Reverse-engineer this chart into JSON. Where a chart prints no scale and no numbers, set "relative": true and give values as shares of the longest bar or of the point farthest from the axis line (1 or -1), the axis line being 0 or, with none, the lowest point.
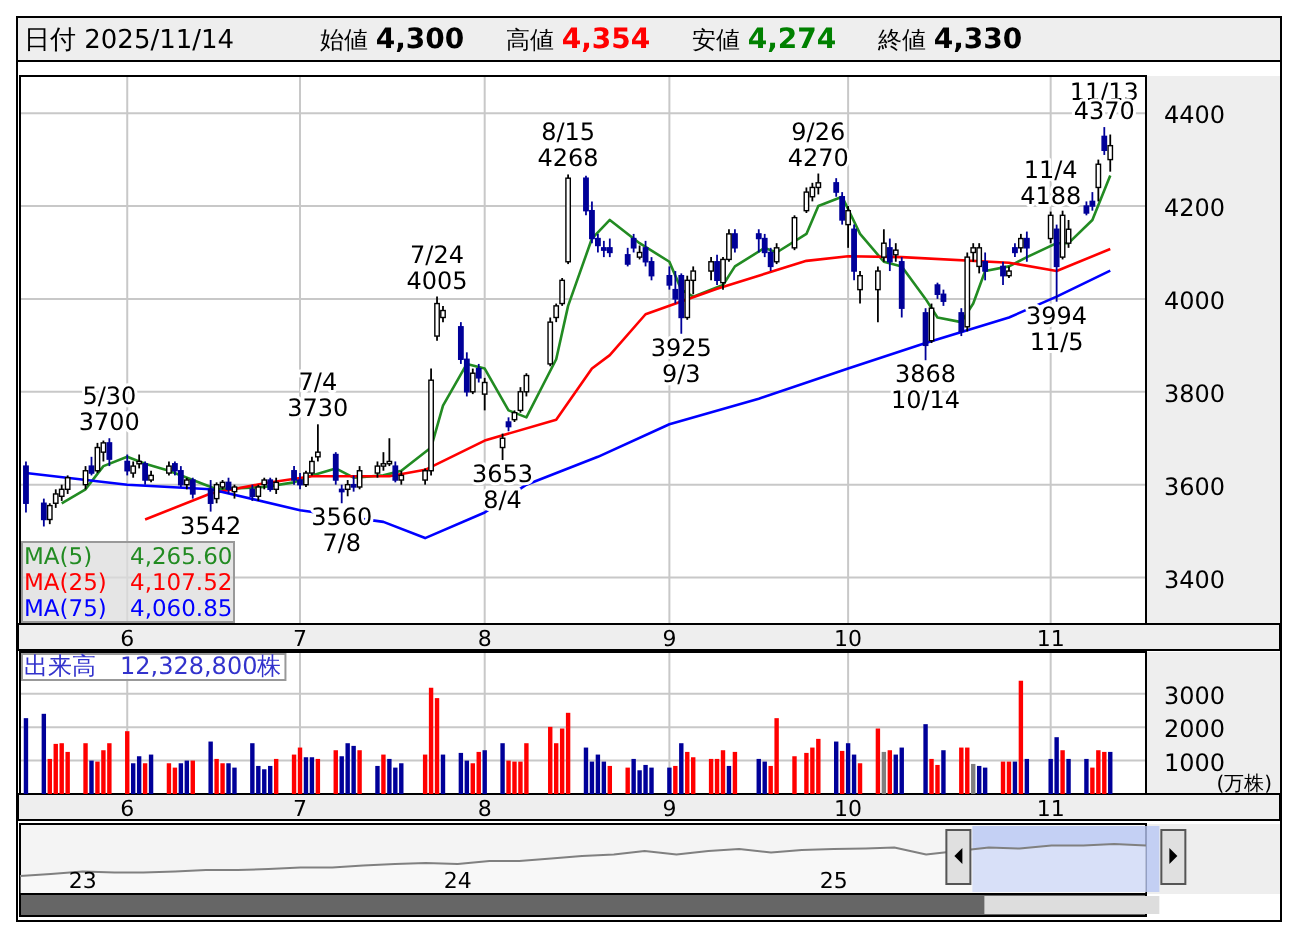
{
  "chart_data": [
    {
      "type": "other",
      "title": "日付 2025/11/14",
      "annotations": [
        "始値 4,300",
        "高値 4,354",
        "安値 4,274",
        "終値 4,330"
      ],
      "colors": [
        "#000000",
        "#ff0000",
        "#008000",
        "#000000"
      ]
    },
    {
      "type": "candlestick",
      "ylim": [
        3300,
        4480
      ],
      "xlim": [
        "2025-05-15",
        "2025-11-20"
      ],
      "yticks": [
        3400,
        3600,
        3800,
        4000,
        4200,
        4400
      ],
      "grid": true,
      "legend": "bottom left",
      "xticks": [
        {
          "value": "2025-06-02",
          "label": "6"
        },
        {
          "value": "2025-07-01",
          "label": "7"
        },
        {
          "value": "2025-08-01",
          "label": "8"
        },
        {
          "value": "2025-09-01",
          "label": "9"
        },
        {
          "value": "2025-10-01",
          "label": "10"
        },
        {
          "value": "2025-11-04",
          "label": "11"
        }
      ],
      "x": [
        "2025-05-16",
        "2025-05-19",
        "2025-05-20",
        "2025-05-21",
        "2025-05-22",
        "2025-05-23",
        "2025-05-26",
        "2025-05-27",
        "2025-05-28",
        "2025-05-29",
        "2025-05-30",
        "2025-06-02",
        "2025-06-03",
        "2025-06-04",
        "2025-06-05",
        "2025-06-06",
        "2025-06-09",
        "2025-06-10",
        "2025-06-11",
        "2025-06-12",
        "2025-06-13",
        "2025-06-16",
        "2025-06-17",
        "2025-06-18",
        "2025-06-19",
        "2025-06-20",
        "2025-06-23",
        "2025-06-24",
        "2025-06-25",
        "2025-06-26",
        "2025-06-27",
        "2025-06-30",
        "2025-07-01",
        "2025-07-02",
        "2025-07-03",
        "2025-07-04",
        "2025-07-07",
        "2025-07-08",
        "2025-07-09",
        "2025-07-10",
        "2025-07-11",
        "2025-07-14",
        "2025-07-15",
        "2025-07-16",
        "2025-07-17",
        "2025-07-18",
        "2025-07-22",
        "2025-07-23",
        "2025-07-24",
        "2025-07-25",
        "2025-07-28",
        "2025-07-29",
        "2025-07-30",
        "2025-07-31",
        "2025-08-01",
        "2025-08-04",
        "2025-08-05",
        "2025-08-06",
        "2025-08-07",
        "2025-08-08",
        "2025-08-12",
        "2025-08-13",
        "2025-08-14",
        "2025-08-15",
        "2025-08-18",
        "2025-08-19",
        "2025-08-20",
        "2025-08-21",
        "2025-08-22",
        "2025-08-25",
        "2025-08-26",
        "2025-08-27",
        "2025-08-28",
        "2025-08-29",
        "2025-09-01",
        "2025-09-02",
        "2025-09-03",
        "2025-09-04",
        "2025-09-05",
        "2025-09-08",
        "2025-09-09",
        "2025-09-10",
        "2025-09-11",
        "2025-09-12",
        "2025-09-16",
        "2025-09-17",
        "2025-09-18",
        "2025-09-19",
        "2025-09-22",
        "2025-09-24",
        "2025-09-25",
        "2025-09-26",
        "2025-09-29",
        "2025-09-30",
        "2025-10-01",
        "2025-10-02",
        "2025-10-03",
        "2025-10-06",
        "2025-10-07",
        "2025-10-08",
        "2025-10-09",
        "2025-10-10",
        "2025-10-14",
        "2025-10-15",
        "2025-10-16",
        "2025-10-17",
        "2025-10-20",
        "2025-10-21",
        "2025-10-22",
        "2025-10-23",
        "2025-10-24",
        "2025-10-27",
        "2025-10-28",
        "2025-10-29",
        "2025-10-30",
        "2025-10-31",
        "2025-11-04",
        "2025-11-05",
        "2025-11-06",
        "2025-11-07",
        "2025-11-10",
        "2025-11-11",
        "2025-11-12",
        "2025-11-13",
        "2025-11-14"
      ],
      "ohlc": [
        [
          3640,
          3650,
          3540,
          3560
        ],
        [
          3560,
          3570,
          3510,
          3525
        ],
        [
          3525,
          3560,
          3515,
          3555
        ],
        [
          3560,
          3590,
          3550,
          3580
        ],
        [
          3575,
          3600,
          3565,
          3590
        ],
        [
          3590,
          3620,
          3580,
          3615
        ],
        [
          3600,
          3640,
          3590,
          3630
        ],
        [
          3640,
          3660,
          3620,
          3625
        ],
        [
          3630,
          3690,
          3625,
          3680
        ],
        [
          3670,
          3695,
          3650,
          3690
        ],
        [
          3690,
          3700,
          3640,
          3655
        ],
        [
          3650,
          3665,
          3620,
          3630
        ],
        [
          3625,
          3650,
          3615,
          3640
        ],
        [
          3645,
          3665,
          3635,
          3650
        ],
        [
          3645,
          3650,
          3600,
          3610
        ],
        [
          3610,
          3630,
          3605,
          3620
        ],
        [
          3625,
          3650,
          3620,
          3640
        ],
        [
          3645,
          3650,
          3620,
          3630
        ],
        [
          3630,
          3640,
          3595,
          3600
        ],
        [
          3600,
          3615,
          3590,
          3610
        ],
        [
          3610,
          3615,
          3570,
          3580
        ],
        [
          3590,
          3610,
          3542,
          3560
        ],
        [
          3570,
          3605,
          3560,
          3600
        ],
        [
          3595,
          3610,
          3590,
          3605
        ],
        [
          3605,
          3615,
          3580,
          3590
        ],
        [
          3585,
          3600,
          3570,
          3595
        ],
        [
          3590,
          3600,
          3565,
          3575
        ],
        [
          3575,
          3600,
          3565,
          3595
        ],
        [
          3600,
          3615,
          3590,
          3610
        ],
        [
          3610,
          3615,
          3585,
          3590
        ],
        [
          3590,
          3615,
          3580,
          3605
        ],
        [
          3630,
          3640,
          3600,
          3610
        ],
        [
          3610,
          3625,
          3590,
          3600
        ],
        [
          3600,
          3630,
          3595,
          3625
        ],
        [
          3625,
          3660,
          3620,
          3650
        ],
        [
          3660,
          3730,
          3650,
          3670
        ],
        [
          3665,
          3670,
          3600,
          3610
        ],
        [
          3590,
          3600,
          3560,
          3585
        ],
        [
          3590,
          3610,
          3575,
          3600
        ],
        [
          3600,
          3620,
          3585,
          3595
        ],
        [
          3595,
          3640,
          3590,
          3630
        ],
        [
          3625,
          3650,
          3615,
          3640
        ],
        [
          3640,
          3670,
          3630,
          3645
        ],
        [
          3645,
          3700,
          3640,
          3650
        ],
        [
          3640,
          3650,
          3605,
          3610
        ],
        [
          3610,
          3630,
          3600,
          3620
        ],
        [
          3610,
          3635,
          3600,
          3630
        ],
        [
          3630,
          3850,
          3620,
          3825
        ],
        [
          3920,
          4005,
          3910,
          3990
        ],
        [
          3960,
          3985,
          3950,
          3975
        ],
        [
          3940,
          3950,
          3860,
          3870
        ],
        [
          3870,
          3885,
          3790,
          3800
        ],
        [
          3800,
          3850,
          3795,
          3840
        ],
        [
          3850,
          3860,
          3820,
          3830
        ],
        [
          3795,
          3830,
          3760,
          3820
        ],
        [
          3680,
          3710,
          3653,
          3700
        ],
        [
          3735,
          3745,
          3715,
          3725
        ],
        [
          3740,
          3760,
          3735,
          3755
        ],
        [
          3760,
          3810,
          3755,
          3800
        ],
        [
          3800,
          3840,
          3790,
          3835
        ],
        [
          3860,
          3960,
          3855,
          3950
        ],
        [
          3960,
          3990,
          3950,
          3985
        ],
        [
          3990,
          4045,
          3985,
          4040
        ],
        [
          4080,
          4268,
          4075,
          4260
        ],
        [
          4260,
          4265,
          4180,
          4190
        ],
        [
          4190,
          4210,
          4120,
          4130
        ],
        [
          4130,
          4140,
          4100,
          4115
        ],
        [
          4110,
          4125,
          4090,
          4105
        ],
        [
          4110,
          4130,
          4090,
          4100
        ],
        [
          4095,
          4110,
          4070,
          4075
        ],
        [
          4130,
          4140,
          4100,
          4110
        ],
        [
          4090,
          4115,
          4085,
          4100
        ],
        [
          4110,
          4125,
          4070,
          4080
        ],
        [
          4080,
          4090,
          4040,
          4050
        ],
        [
          4050,
          4070,
          4020,
          4030
        ],
        [
          4020,
          4060,
          3990,
          4000
        ],
        [
          4050,
          4055,
          3925,
          3960
        ],
        [
          3960,
          4050,
          3955,
          4040
        ],
        [
          4040,
          4070,
          4010,
          4060
        ],
        [
          4060,
          4090,
          4040,
          4080
        ],
        [
          4080,
          4095,
          4030,
          4040
        ],
        [
          4035,
          4090,
          4020,
          4085
        ],
        [
          4085,
          4150,
          4080,
          4140
        ],
        [
          4140,
          4150,
          4100,
          4110
        ],
        [
          4140,
          4150,
          4100,
          4130
        ],
        [
          4130,
          4140,
          4090,
          4100
        ],
        [
          4100,
          4110,
          4060,
          4070
        ],
        [
          4080,
          4120,
          4075,
          4110
        ],
        [
          4110,
          4180,
          4105,
          4175
        ],
        [
          4190,
          4240,
          4185,
          4230
        ],
        [
          4220,
          4250,
          4210,
          4240
        ],
        [
          4240,
          4270,
          4225,
          4250
        ],
        [
          4250,
          4260,
          4220,
          4230
        ],
        [
          4220,
          4230,
          4160,
          4170
        ],
        [
          4160,
          4200,
          4110,
          4190
        ],
        [
          4150,
          4160,
          4040,
          4060
        ],
        [
          4020,
          4060,
          3990,
          4050
        ],
        [
          4020,
          4070,
          3950,
          4060
        ],
        [
          4090,
          4150,
          4080,
          4120
        ],
        [
          4110,
          4130,
          4060,
          4080
        ],
        [
          4095,
          4120,
          4080,
          4105
        ],
        [
          4080,
          4090,
          3960,
          3980
        ],
        [
          3970,
          3980,
          3868,
          3900
        ],
        [
          3910,
          3990,
          3905,
          3980
        ],
        [
          4030,
          4035,
          4000,
          4010
        ],
        [
          4010,
          4020,
          3985,
          3995
        ],
        [
          3970,
          3980,
          3920,
          3930
        ],
        [
          3940,
          4100,
          3930,
          4090
        ],
        [
          4100,
          4120,
          4080,
          4110
        ],
        [
          4070,
          4120,
          4055,
          4110
        ],
        [
          4080,
          4100,
          4040,
          4060
        ],
        [
          4070,
          4080,
          4030,
          4050
        ],
        [
          4050,
          4070,
          4045,
          4060
        ],
        [
          4110,
          4120,
          4090,
          4100
        ],
        [
          4110,
          4140,
          4100,
          4130
        ],
        [
          4130,
          4145,
          4080,
          4110
        ],
        [
          4130,
          4188,
          4120,
          4180
        ],
        [
          4150,
          4160,
          3994,
          4070
        ],
        [
          4090,
          4190,
          4085,
          4180
        ],
        [
          4120,
          4170,
          4110,
          4150
        ],
        [
          4200,
          4210,
          4180,
          4185
        ],
        [
          4210,
          4230,
          4190,
          4200
        ],
        [
          4240,
          4300,
          4210,
          4290
        ],
        [
          4350,
          4370,
          4310,
          4320
        ],
        [
          4300,
          4354,
          4274,
          4330
        ]
      ],
      "series": [
        {
          "name": "MA(5) 4,265.60",
          "type": "line",
          "color": "#228b22",
          "x": [
            "2025-05-22",
            "2025-05-26",
            "2025-05-29",
            "2025-06-02",
            "2025-06-05",
            "2025-06-09",
            "2025-06-13",
            "2025-06-17",
            "2025-06-20",
            "2025-06-25",
            "2025-06-30",
            "2025-07-03",
            "2025-07-07",
            "2025-07-10",
            "2025-07-15",
            "2025-07-18",
            "2025-07-23",
            "2025-07-25",
            "2025-07-29",
            "2025-08-01",
            "2025-08-05",
            "2025-08-08",
            "2025-08-13",
            "2025-08-15",
            "2025-08-19",
            "2025-08-22",
            "2025-08-27",
            "2025-09-01",
            "2025-09-03",
            "2025-09-05",
            "2025-09-10",
            "2025-09-12",
            "2025-09-17",
            "2025-09-19",
            "2025-09-24",
            "2025-09-26",
            "2025-09-30",
            "2025-10-03",
            "2025-10-07",
            "2025-10-10",
            "2025-10-14",
            "2025-10-16",
            "2025-10-20",
            "2025-10-22",
            "2025-10-24",
            "2025-10-28",
            "2025-10-31",
            "2025-11-05",
            "2025-11-07",
            "2025-11-11",
            "2025-11-14"
          ],
          "values": [
            3560,
            3590,
            3640,
            3660,
            3645,
            3630,
            3610,
            3590,
            3592,
            3595,
            3605,
            3620,
            3635,
            3615,
            3620,
            3630,
            3680,
            3770,
            3860,
            3850,
            3760,
            3745,
            3870,
            3985,
            4130,
            4170,
            4120,
            4080,
            4020,
            4005,
            4030,
            4070,
            4110,
            4100,
            4140,
            4200,
            4220,
            4140,
            4080,
            4070,
            4000,
            3960,
            3950,
            3990,
            4060,
            4070,
            4090,
            4120,
            4120,
            4170,
            4265.6
          ]
        },
        {
          "name": "MA(25) 4,107.52",
          "type": "line",
          "color": "#ff0000",
          "x": [
            "2025-06-05",
            "2025-06-16",
            "2025-06-25",
            "2025-07-03",
            "2025-07-16",
            "2025-07-22",
            "2025-08-01",
            "2025-08-13",
            "2025-08-19",
            "2025-08-22",
            "2025-08-28",
            "2025-09-09",
            "2025-09-24",
            "2025-10-01",
            "2025-10-10",
            "2025-10-28",
            "2025-11-05",
            "2025-11-14"
          ],
          "values": [
            3525,
            3581,
            3603,
            3618,
            3618,
            3632,
            3695,
            3740,
            3850,
            3879,
            3967,
            4022,
            4082,
            4092,
            4090,
            4078,
            4060,
            4107.52
          ]
        },
        {
          "name": "MA(75) 4,060.85",
          "type": "line",
          "color": "#0000ff",
          "x": [
            "2025-05-16",
            "2025-06-02",
            "2025-06-16",
            "2025-07-01",
            "2025-07-15",
            "2025-07-22",
            "2025-08-01",
            "2025-08-08",
            "2025-08-20",
            "2025-09-01",
            "2025-09-16",
            "2025-10-01",
            "2025-10-14",
            "2025-10-28",
            "2025-11-05",
            "2025-11-14"
          ],
          "values": [
            3625,
            3600,
            3590,
            3545,
            3520,
            3485,
            3540,
            3600,
            3660,
            3730,
            3785,
            3850,
            3905,
            3960,
            4005,
            4060.85
          ]
        }
      ],
      "annotations": [
        {
          "text": "5/30\n3700",
          "x": "2025-05-30",
          "y": 3700
        },
        {
          "text": "3542",
          "x": "2025-06-16",
          "y": 3542
        },
        {
          "text": "7/4\n3730",
          "x": "2025-07-04",
          "y": 3730
        },
        {
          "text": "3560\n7/8",
          "x": "2025-07-08",
          "y": 3560
        },
        {
          "text": "7/24\n4005",
          "x": "2025-07-24",
          "y": 4005
        },
        {
          "text": "3653\n8/4",
          "x": "2025-08-04",
          "y": 3653
        },
        {
          "text": "8/15\n4268",
          "x": "2025-08-15",
          "y": 4268
        },
        {
          "text": "3925\n9/3",
          "x": "2025-09-03",
          "y": 3925
        },
        {
          "text": "9/26\n4270",
          "x": "2025-09-26",
          "y": 4270
        },
        {
          "text": "3868\n10/14",
          "x": "2025-10-14",
          "y": 3868
        },
        {
          "text": "11/4\n4188",
          "x": "2025-11-04",
          "y": 4188
        },
        {
          "text": "3994\n11/5",
          "x": "2025-11-05",
          "y": 3994
        },
        {
          "text": "11/13\n4370",
          "x": "2025-11-13",
          "y": 4370
        }
      ]
    },
    {
      "type": "bar",
      "title": "出来高　12,328,800株",
      "ylabel": "(万株)",
      "ylim": [
        0,
        4250
      ],
      "xlim": [
        "2025-05-15",
        "2025-11-20"
      ],
      "yticks": [
        1000,
        2000,
        3000
      ],
      "grid": true,
      "xticks": [
        {
          "value": "2025-06-02",
          "label": "6"
        },
        {
          "value": "2025-07-01",
          "label": "7"
        },
        {
          "value": "2025-08-01",
          "label": "8"
        },
        {
          "value": "2025-09-01",
          "label": "9"
        },
        {
          "value": "2025-10-01",
          "label": "10"
        },
        {
          "value": "2025-11-04",
          "label": "11"
        }
      ],
      "x": [
        "2025-05-16",
        "2025-05-19",
        "2025-05-20",
        "2025-05-21",
        "2025-05-22",
        "2025-05-23",
        "2025-05-26",
        "2025-05-27",
        "2025-05-28",
        "2025-05-29",
        "2025-05-30",
        "2025-06-02",
        "2025-06-03",
        "2025-06-04",
        "2025-06-05",
        "2025-06-06",
        "2025-06-09",
        "2025-06-10",
        "2025-06-11",
        "2025-06-12",
        "2025-06-13",
        "2025-06-16",
        "2025-06-17",
        "2025-06-18",
        "2025-06-19",
        "2025-06-20",
        "2025-06-23",
        "2025-06-24",
        "2025-06-25",
        "2025-06-26",
        "2025-06-27",
        "2025-06-30",
        "2025-07-01",
        "2025-07-02",
        "2025-07-03",
        "2025-07-04",
        "2025-07-07",
        "2025-07-08",
        "2025-07-09",
        "2025-07-10",
        "2025-07-11",
        "2025-07-14",
        "2025-07-15",
        "2025-07-16",
        "2025-07-17",
        "2025-07-18",
        "2025-07-22",
        "2025-07-23",
        "2025-07-24",
        "2025-07-25",
        "2025-07-28",
        "2025-07-29",
        "2025-07-30",
        "2025-07-31",
        "2025-08-01",
        "2025-08-04",
        "2025-08-05",
        "2025-08-06",
        "2025-08-07",
        "2025-08-08",
        "2025-08-12",
        "2025-08-13",
        "2025-08-14",
        "2025-08-15",
        "2025-08-18",
        "2025-08-19",
        "2025-08-20",
        "2025-08-21",
        "2025-08-22",
        "2025-08-25",
        "2025-08-26",
        "2025-08-27",
        "2025-08-28",
        "2025-08-29",
        "2025-09-01",
        "2025-09-02",
        "2025-09-03",
        "2025-09-04",
        "2025-09-05",
        "2025-09-08",
        "2025-09-09",
        "2025-09-10",
        "2025-09-11",
        "2025-09-12",
        "2025-09-16",
        "2025-09-17",
        "2025-09-18",
        "2025-09-19",
        "2025-09-22",
        "2025-09-24",
        "2025-09-25",
        "2025-09-26",
        "2025-09-29",
        "2025-09-30",
        "2025-10-01",
        "2025-10-02",
        "2025-10-03",
        "2025-10-06",
        "2025-10-07",
        "2025-10-08",
        "2025-10-09",
        "2025-10-10",
        "2025-10-14",
        "2025-10-15",
        "2025-10-16",
        "2025-10-17",
        "2025-10-20",
        "2025-10-21",
        "2025-10-22",
        "2025-10-23",
        "2025-10-24",
        "2025-10-27",
        "2025-10-28",
        "2025-10-29",
        "2025-10-30",
        "2025-10-31",
        "2025-11-04",
        "2025-11-05",
        "2025-11-06",
        "2025-11-07",
        "2025-11-10",
        "2025-11-11",
        "2025-11-12",
        "2025-11-13",
        "2025-11-14"
      ],
      "values": [
        2270,
        2400,
        1050,
        1500,
        1520,
        1260,
        1520,
        1000,
        970,
        1310,
        1520,
        1880,
        920,
        1130,
        920,
        1180,
        920,
        790,
        920,
        1000,
        1000,
        1570,
        1050,
        920,
        920,
        790,
        1520,
        840,
        740,
        840,
        1050,
        1180,
        1390,
        1100,
        1100,
        1050,
        1310,
        1130,
        1520,
        1440,
        1310,
        840,
        1180,
        1050,
        790,
        920,
        1180,
        3180,
        2870,
        1180,
        1230,
        1000,
        920,
        1260,
        1310,
        1520,
        1000,
        970,
        970,
        1520,
        2010,
        1520,
        1960,
        2430,
        1390,
        970,
        1180,
        970,
        840,
        790,
        1050,
        710,
        870,
        790,
        790,
        840,
        1520,
        1260,
        1100,
        1050,
        1050,
        1310,
        840,
        1260,
        1050,
        970,
        840,
        2270,
        1130,
        1230,
        1390,
        1650,
        1570,
        1290,
        1520,
        1180,
        920,
        1960,
        1260,
        1310,
        1180,
        1390,
        2090,
        1050,
        870,
        1310,
        1390,
        1390,
        900,
        840,
        790,
        970,
        970,
        970,
        3390,
        1050,
        1050,
        1700,
        1310,
        1050,
        1050,
        790,
        1310,
        1260,
        1260
      ],
      "colors": [
        "#000099",
        "#000099",
        "#ff0000",
        "#ff0000",
        "#ff0000",
        "#ff0000",
        "#ff0000",
        "#000099",
        "#ff0000",
        "#ff0000",
        "#ff0000",
        "#ff0000",
        "#000099",
        "#000099",
        "#ff0000",
        "#000099",
        "#ff0000",
        "#ff0000",
        "#000099",
        "#000099",
        "#ff0000",
        "#000099",
        "#ff0000",
        "#ff0000",
        "#000099",
        "#000099",
        "#000099",
        "#000099",
        "#000099",
        "#000099",
        "#ff0000",
        "#ff0000",
        "#ff0000",
        "#000099",
        "#000099",
        "#ff0000",
        "#ff0000",
        "#000099",
        "#000099",
        "#000099",
        "#ff0000",
        "#000099",
        "#ff0000",
        "#000099",
        "#000099",
        "#000099",
        "#ff0000",
        "#ff0000",
        "#ff0000",
        "#000099",
        "#000099",
        "#000099",
        "#ff0000",
        "#ff0000",
        "#000099",
        "#000099",
        "#ff0000",
        "#ff0000",
        "#ff0000",
        "#ff0000",
        "#ff0000",
        "#ff0000",
        "#ff0000",
        "#ff0000",
        "#000099",
        "#000099",
        "#000099",
        "#000099",
        "#ff0000",
        "#ff0000",
        "#000099",
        "#000099",
        "#000099",
        "#000099",
        "#000099",
        "#ff0000",
        "#000099",
        "#ff0000",
        "#ff0000",
        "#ff0000",
        "#ff0000",
        "#ff0000",
        "#000099",
        "#ff0000",
        "#000099",
        "#000099",
        "#ff0000",
        "#ff0000",
        "#ff0000",
        "#ff0000",
        "#ff0000",
        "#ff0000",
        "#000099",
        "#ff0000",
        "#000099",
        "#000099",
        "#ff0000",
        "#ff0000",
        "#808080",
        "#ff0000",
        "#000099",
        "#000099",
        "#000099",
        "#ff0000",
        "#ff0000",
        "#000099",
        "#ff0000",
        "#ff0000",
        "#808080",
        "#000099",
        "#000099",
        "#ff0000",
        "#ff0000",
        "#000099",
        "#ff0000",
        "#000099",
        "#000099",
        "#000099",
        "#ff0000",
        "#000099",
        "#000099",
        "#ff0000",
        "#ff0000",
        "#ff0000",
        "#000099"
      ]
    },
    {
      "type": "area",
      "relative": true,
      "xlim": [
        "2022-11",
        "2025-11"
      ],
      "xticks": [
        {
          "value": "2023-01",
          "label": "23"
        },
        {
          "value": "2024-01",
          "label": "24"
        },
        {
          "value": "2025-01",
          "label": "25"
        }
      ],
      "x": [
        "2022-11",
        "2022-12",
        "2023-01",
        "2023-02",
        "2023-03",
        "2023-04",
        "2023-05",
        "2023-06",
        "2023-07",
        "2023-08",
        "2023-09",
        "2023-10",
        "2023-11",
        "2023-12",
        "2024-01",
        "2024-02",
        "2024-03",
        "2024-04",
        "2024-05",
        "2024-06",
        "2024-07",
        "2024-08",
        "2024-09",
        "2024-10",
        "2024-11",
        "2024-12",
        "2025-01",
        "2025-02",
        "2025-03",
        "2025-04",
        "2025-06",
        "2025-07",
        "2025-08",
        "2025-09",
        "2025-10",
        "2025-11"
      ],
      "series": [
        {
          "color": "#808080",
          "values": [
            0.36,
            0.4,
            0.45,
            0.43,
            0.43,
            0.45,
            0.48,
            0.48,
            0.5,
            0.53,
            0.53,
            0.57,
            0.6,
            0.62,
            0.6,
            0.66,
            0.66,
            0.71,
            0.76,
            0.79,
            0.86,
            0.79,
            0.86,
            0.9,
            0.83,
            0.88,
            0.9,
            0.91,
            0.93,
            0.79,
            0.93,
            0.91,
            0.97,
            0.97,
            1,
            0.97
          ]
        }
      ],
      "bands": [
        {
          "axis": "x",
          "from": "2025-05-16",
          "to": "2025-11-14",
          "color": "#b8c7f4"
        }
      ]
    }
  ]
}
